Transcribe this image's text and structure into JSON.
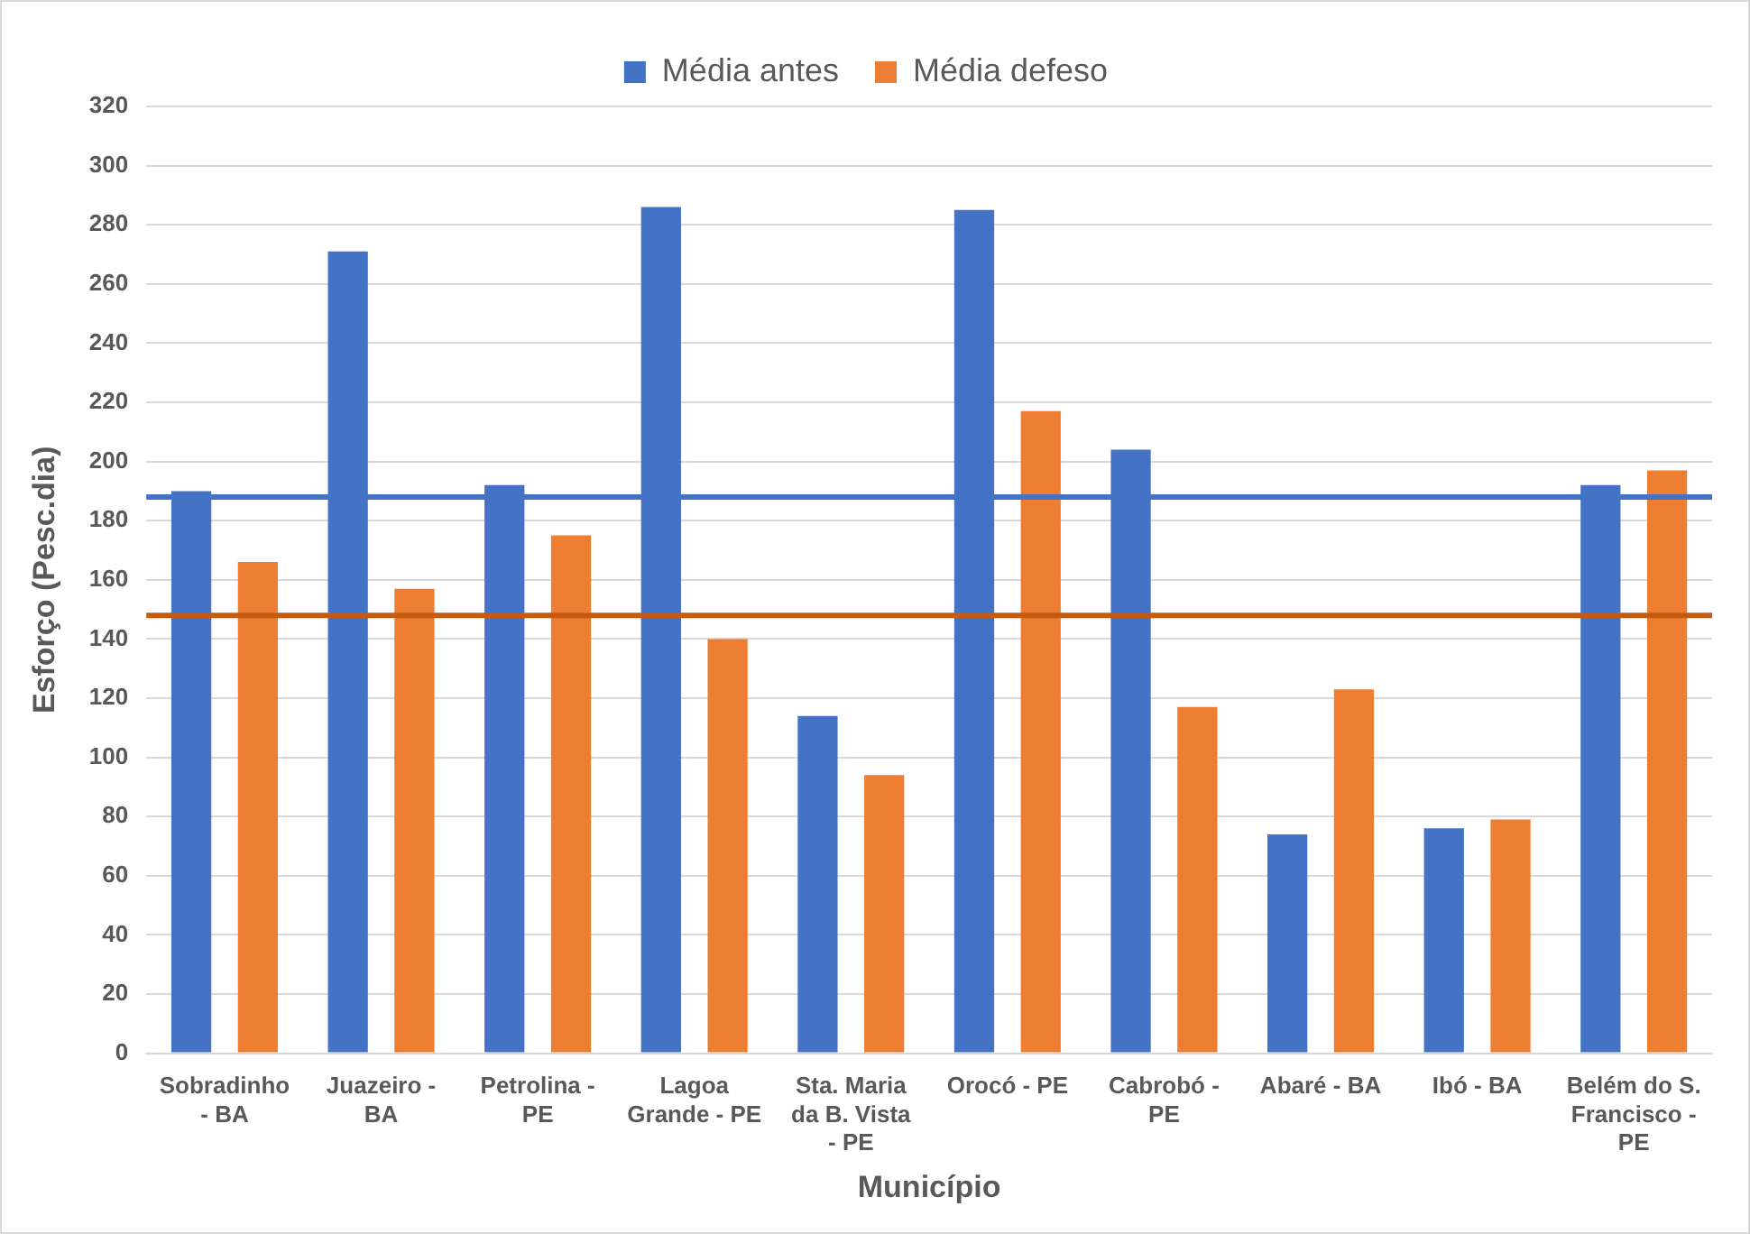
{
  "chart_data": {
    "type": "bar",
    "xlabel": "Município",
    "ylabel": "Esforço (Pesc.dia)",
    "categories": [
      "Sobradinho - BA",
      "Juazeiro - BA",
      "Petrolina - PE",
      "Lagoa Grande - PE",
      "Sta. Maria da B. Vista - PE",
      "Orocó - PE",
      "Cabrobó - PE",
      "Abaré - BA",
      "Ibó - BA",
      "Belém do S. Francisco - PE"
    ],
    "series": [
      {
        "name": "Média antes",
        "color": "#4472c4",
        "values": [
          190,
          271,
          192,
          286,
          114,
          285,
          204,
          74,
          76,
          192
        ]
      },
      {
        "name": "Média defeso",
        "color": "#ed7d31",
        "values": [
          166,
          157,
          175,
          140,
          94,
          217,
          117,
          123,
          79,
          197
        ]
      }
    ],
    "ylim": [
      0,
      320
    ],
    "yticks": [
      0,
      20,
      40,
      60,
      80,
      100,
      120,
      140,
      160,
      180,
      200,
      220,
      240,
      260,
      280,
      300,
      320
    ],
    "grid": "y",
    "legend": "top",
    "ref_lines": [
      {
        "axis": "y",
        "value": 188,
        "color": "#4472c4"
      },
      {
        "axis": "y",
        "value": 148,
        "color": "#c55a11"
      }
    ]
  }
}
